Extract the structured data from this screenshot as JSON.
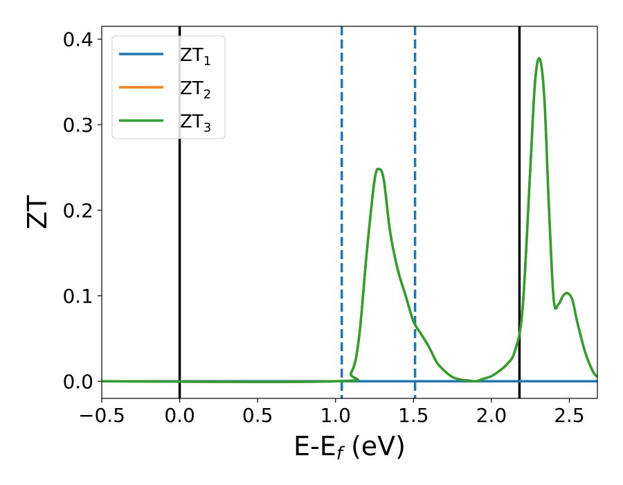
{
  "chart_data": {
    "type": "line",
    "title": "",
    "xlabel": "E-E",
    "xlabel_sub": "f",
    "xlabel_unit": " (eV)",
    "ylabel": "ZT",
    "xlim": [
      -0.5,
      2.68
    ],
    "ylim": [
      -0.02,
      0.415
    ],
    "xticks": [
      -0.5,
      0.0,
      0.5,
      1.0,
      1.5,
      2.0,
      2.5
    ],
    "xtick_labels": [
      "−0.5",
      "0.0",
      "0.5",
      "1.0",
      "1.5",
      "2.0",
      "2.5"
    ],
    "yticks": [
      0.0,
      0.1,
      0.2,
      0.3,
      0.4
    ],
    "ytick_labels": [
      "0.0",
      "0.1",
      "0.2",
      "0.3",
      "0.4"
    ],
    "grid": false,
    "legend_position": "top-left",
    "series": [
      {
        "name": "ZT",
        "name_sub": "1",
        "color": "#1f77b4",
        "x": [
          -0.5,
          2.68
        ],
        "y": [
          0.0,
          0.0
        ]
      },
      {
        "name": "ZT",
        "name_sub": "2",
        "color": "#ff7f0e",
        "x": [
          -0.5,
          1.0,
          1.1,
          1.15,
          1.2,
          1.25,
          1.28,
          1.31,
          1.35,
          1.4,
          1.45,
          1.5,
          1.55,
          1.6,
          1.65,
          1.7,
          1.75,
          1.8,
          1.85,
          1.9,
          1.95,
          2.0,
          2.05,
          2.1,
          2.15,
          2.2,
          2.25,
          2.28,
          2.31,
          2.34,
          2.37,
          2.4,
          2.43,
          2.46,
          2.49,
          2.52,
          2.55,
          2.6,
          2.65,
          2.68
        ],
        "y": [
          0.0,
          0.0,
          0.01,
          0.05,
          0.15,
          0.235,
          0.248,
          0.235,
          0.175,
          0.13,
          0.1,
          0.07,
          0.055,
          0.04,
          0.022,
          0.012,
          0.005,
          0.002,
          0.001,
          0.0,
          0.003,
          0.006,
          0.012,
          0.02,
          0.035,
          0.085,
          0.25,
          0.35,
          0.377,
          0.33,
          0.2,
          0.095,
          0.09,
          0.1,
          0.103,
          0.095,
          0.07,
          0.035,
          0.012,
          0.005
        ]
      },
      {
        "name": "ZT",
        "name_sub": "3",
        "color": "#2ca02c",
        "x": [
          -0.5,
          1.0,
          1.1,
          1.15,
          1.2,
          1.25,
          1.28,
          1.31,
          1.35,
          1.4,
          1.45,
          1.5,
          1.55,
          1.6,
          1.65,
          1.7,
          1.75,
          1.8,
          1.85,
          1.9,
          1.95,
          2.0,
          2.05,
          2.1,
          2.15,
          2.2,
          2.25,
          2.28,
          2.31,
          2.34,
          2.37,
          2.4,
          2.43,
          2.46,
          2.49,
          2.52,
          2.55,
          2.6,
          2.65,
          2.68
        ],
        "y": [
          0.0,
          0.0,
          0.01,
          0.05,
          0.15,
          0.235,
          0.248,
          0.235,
          0.175,
          0.13,
          0.1,
          0.07,
          0.055,
          0.04,
          0.022,
          0.012,
          0.005,
          0.002,
          0.001,
          0.0,
          0.003,
          0.006,
          0.012,
          0.02,
          0.035,
          0.085,
          0.25,
          0.35,
          0.377,
          0.33,
          0.2,
          0.095,
          0.09,
          0.1,
          0.103,
          0.095,
          0.07,
          0.035,
          0.012,
          0.005
        ]
      }
    ],
    "vlines": [
      {
        "x": 0.0,
        "color": "#000000",
        "style": "solid"
      },
      {
        "x": 2.18,
        "color": "#000000",
        "style": "solid"
      },
      {
        "x": 1.04,
        "color": "#1f77b4",
        "style": "dashed"
      },
      {
        "x": 1.51,
        "color": "#1f77b4",
        "style": "dashed"
      }
    ]
  }
}
